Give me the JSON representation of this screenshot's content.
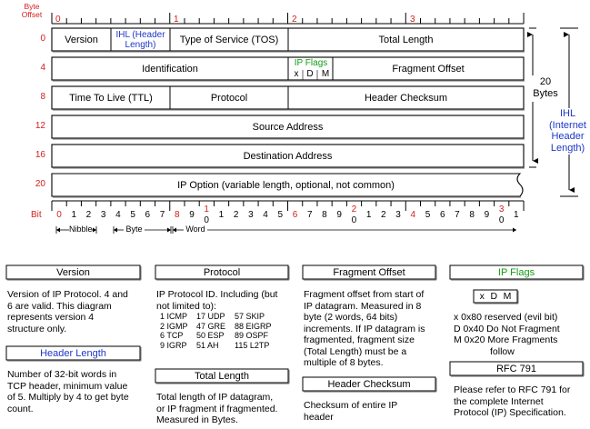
{
  "labels": {
    "byte_offset": [
      "Byte",
      "Offset"
    ],
    "bit": "Bit",
    "nibble": "Nibble",
    "byte": "Byte",
    "word": "Word",
    "size_20": "20",
    "size_bytes": "Bytes",
    "ihl_side": [
      "IHL",
      "(Internet",
      "Header",
      "Length)"
    ]
  },
  "top_byte_marks": [
    "0",
    "1",
    "2",
    "3"
  ],
  "offsets": [
    "0",
    "4",
    "8",
    "12",
    "16",
    "20"
  ],
  "fields": {
    "version": "Version",
    "ihl": [
      "IHL (Header",
      "Length)"
    ],
    "tos": "Type of Service (TOS)",
    "total_length": "Total Length",
    "identification": "Identification",
    "ip_flags": "IP Flags",
    "flag_bits": [
      "x",
      "D",
      "M"
    ],
    "fragment_offset": "Fragment Offset",
    "ttl": "Time To Live (TTL)",
    "protocol": "Protocol",
    "header_checksum": "Header Checksum",
    "source_address": "Source Address",
    "destination_address": "Destination Address",
    "ip_option": "IP Option (variable length, optional, not common)"
  },
  "bit_ruler": {
    "digits": [
      "0",
      "1",
      "2",
      "3",
      "4",
      "5",
      "6",
      "7",
      "8",
      "9",
      "0",
      "1",
      "2",
      "3",
      "4",
      "5",
      "6",
      "7",
      "8",
      "9",
      "0",
      "1",
      "2",
      "3",
      "4",
      "5",
      "6",
      "7",
      "8",
      "9",
      "0",
      "1"
    ],
    "tens": {
      "10": "1",
      "20": "2",
      "30": "3"
    }
  },
  "cards": {
    "version": {
      "title": "Version",
      "body": [
        "Version of IP Protocol.  4 and",
        "6 are valid. This diagram",
        "represents version 4",
        "structure only."
      ]
    },
    "header_length": {
      "title": "Header Length",
      "body": [
        "Number of 32-bit words in",
        "TCP header, minimum value",
        "of 5.  Multiply by 4 to get byte",
        "count."
      ]
    },
    "protocol": {
      "title": "Protocol",
      "body": [
        "IP Protocol ID.  Including (but",
        "not limited to):"
      ],
      "ids": [
        [
          "1 ICMP",
          "17 UDP",
          "57 SKIP"
        ],
        [
          "2 IGMP",
          "47 GRE",
          "88 EIGRP"
        ],
        [
          "6 TCP",
          "50 ESP",
          "89 OSPF"
        ],
        [
          "9 IGRP",
          "51 AH",
          "115 L2TP"
        ]
      ]
    },
    "total_length": {
      "title": "Total Length",
      "body": [
        "Total length of IP datagram,",
        "or IP fragment if fragmented.",
        "Measured in Bytes."
      ]
    },
    "fragment_offset": {
      "title": "Fragment Offset",
      "body": [
        "Fragment offset from start of",
        "IP datagram.  Measured in 8",
        "byte (2 words, 64 bits)",
        "increments.  If IP datagram is",
        "fragmented, fragment size",
        "(Total Length) must be a",
        "multiple of 8 bytes."
      ]
    },
    "header_checksum": {
      "title": "Header Checksum",
      "body": [
        "Checksum of entire IP",
        "header"
      ]
    },
    "ip_flags": {
      "title": "IP Flags",
      "flags_box": [
        "x",
        "D",
        "M"
      ],
      "body": [
        "x  0x80 reserved (evil bit)",
        "D  0x40 Do Not Fragment",
        "M  0x20 More Fragments",
        "follow"
      ]
    },
    "rfc791": {
      "title": "RFC 791",
      "body": [
        "Please refer to RFC 791 for",
        "the complete Internet",
        "Protocol (IP) Specification."
      ]
    }
  }
}
